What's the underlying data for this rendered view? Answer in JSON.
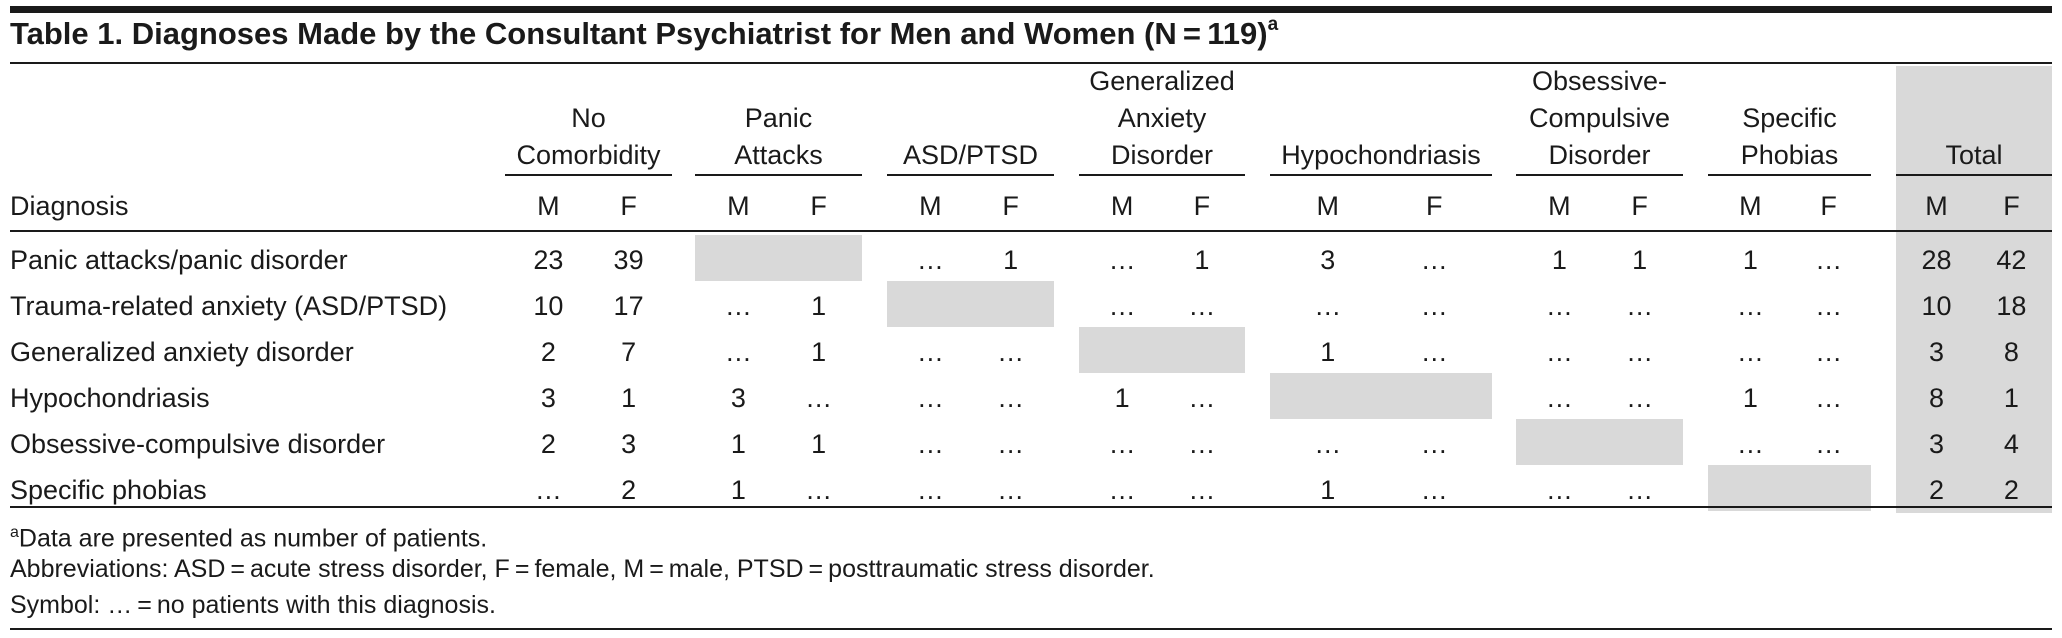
{
  "title": {
    "text": "Table 1. Diagnoses Made by the Consultant Psychiatrist for Men and Women (N = 119)",
    "footnote_marker": "a"
  },
  "header": {
    "row_label": "Diagnosis",
    "groups": [
      {
        "lines": [
          "No",
          "Comorbidity"
        ]
      },
      {
        "lines": [
          "Panic",
          "Attacks"
        ]
      },
      {
        "lines": [
          "ASD/PTSD"
        ]
      },
      {
        "lines": [
          "Generalized",
          "Anxiety",
          "Disorder"
        ]
      },
      {
        "lines": [
          "Hypochondriasis"
        ]
      },
      {
        "lines": [
          "Obsessive-",
          "Compulsive",
          "Disorder"
        ]
      },
      {
        "lines": [
          "Specific",
          "Phobias"
        ]
      },
      {
        "lines": [
          "Total"
        ]
      }
    ],
    "sex_labels": [
      "M",
      "F"
    ]
  },
  "rows": [
    {
      "label": "Panic attacks/panic disorder",
      "cells": [
        "23",
        "39",
        "",
        "",
        "…",
        "1",
        "…",
        "1",
        "3",
        "…",
        "1",
        "1",
        "1",
        "…",
        "28",
        "42"
      ]
    },
    {
      "label": "Trauma-related anxiety (ASD/PTSD)",
      "cells": [
        "10",
        "17",
        "…",
        "1",
        "",
        "",
        "…",
        "…",
        "…",
        "…",
        "…",
        "…",
        "…",
        "…",
        "10",
        "18"
      ]
    },
    {
      "label": "Generalized anxiety disorder",
      "cells": [
        "2",
        "7",
        "…",
        "1",
        "…",
        "…",
        "",
        "",
        "1",
        "…",
        "…",
        "…",
        "…",
        "…",
        "3",
        "8"
      ]
    },
    {
      "label": "Hypochondriasis",
      "cells": [
        "3",
        "1",
        "3",
        "…",
        "…",
        "…",
        "1",
        "…",
        "",
        "",
        "…",
        "…",
        "1",
        "…",
        "8",
        "1"
      ]
    },
    {
      "label": "Obsessive-compulsive disorder",
      "cells": [
        "2",
        "3",
        "1",
        "1",
        "…",
        "…",
        "…",
        "…",
        "…",
        "…",
        "",
        "",
        "…",
        "…",
        "3",
        "4"
      ]
    },
    {
      "label": "Specific phobias",
      "cells": [
        "…",
        "2",
        "1",
        "…",
        "…",
        "…",
        "…",
        "…",
        "1",
        "…",
        "…",
        "…",
        "",
        "",
        "2",
        "2"
      ]
    }
  ],
  "footnotes": [
    {
      "marker": "a",
      "text": "Data are presented as number of patients."
    },
    {
      "marker": "",
      "text": "Abbreviations: ASD = acute stress disorder, F = female, M = male, PTSD = posttraumatic stress disorder."
    },
    {
      "marker": "",
      "text": "Symbol: … = no patients with this diagnosis."
    }
  ],
  "colors": {
    "shade": "#d9d9d9",
    "rule": "#1a1a1a",
    "text": "#1a1a1a"
  }
}
